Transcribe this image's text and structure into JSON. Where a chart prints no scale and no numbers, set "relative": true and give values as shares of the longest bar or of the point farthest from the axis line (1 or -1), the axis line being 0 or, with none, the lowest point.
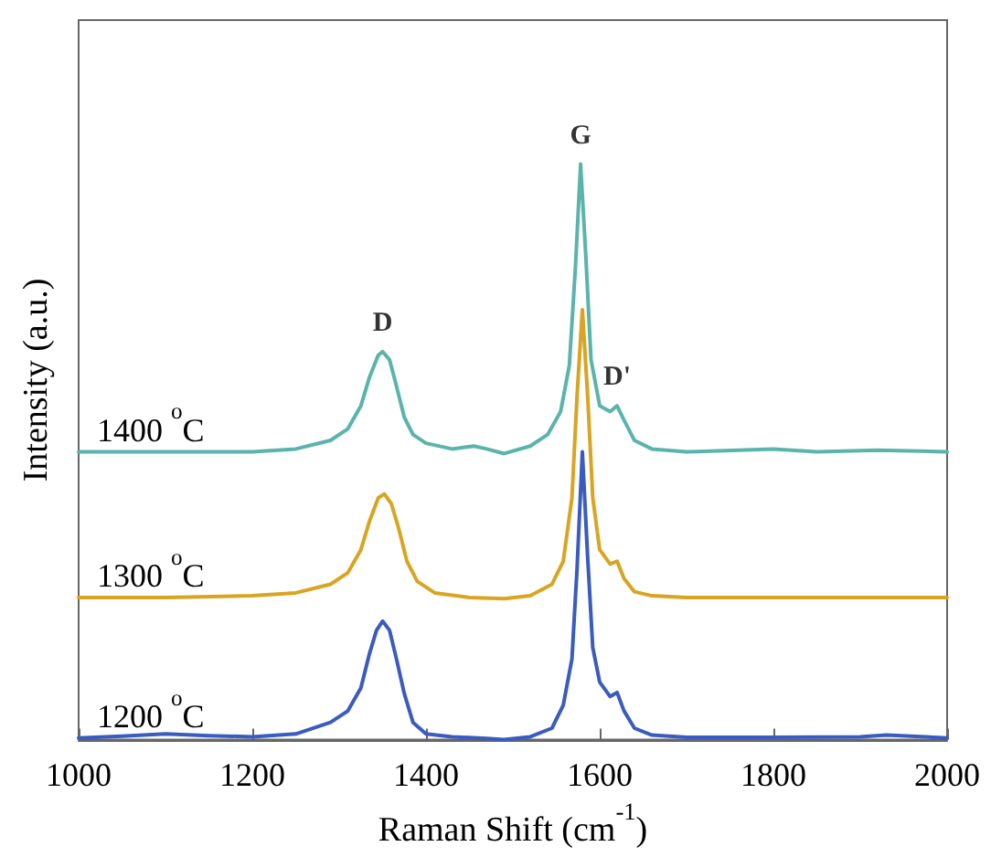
{
  "chart_data": {
    "type": "line",
    "xlabel": "Raman Shift (cm$^{-1}$)",
    "ylabel": "Intensity (a.u.)",
    "relative": true,
    "xlim": [
      1000,
      2000
    ],
    "xticks": [
      1000,
      1200,
      1400,
      1600,
      1800,
      2000
    ],
    "tick_labels": "x",
    "grid": false,
    "legend": false,
    "marker": "none",
    "line_style": "solid",
    "annotations": [
      {
        "text": "D",
        "x": 1350,
        "y": 0.674
      },
      {
        "text": "G",
        "x": 1578,
        "y": 1.0
      },
      {
        "text": "D'",
        "x": 1620,
        "y": 0.58
      }
    ],
    "series": [
      {
        "name": "1400 $^{o}$C",
        "color": "#5ab4ac",
        "x": [
          1000,
          1100,
          1200,
          1250,
          1290,
          1310,
          1325,
          1335,
          1345,
          1350,
          1358,
          1365,
          1375,
          1385,
          1400,
          1430,
          1455,
          1470,
          1490,
          1520,
          1540,
          1555,
          1565,
          1572,
          1578,
          1584,
          1590,
          1600,
          1612,
          1620,
          1628,
          1640,
          1660,
          1700,
          1800,
          1850,
          1920,
          2000
        ],
        "values": [
          0.5,
          0.5,
          0.5,
          0.505,
          0.52,
          0.54,
          0.58,
          0.63,
          0.668,
          0.674,
          0.66,
          0.62,
          0.56,
          0.53,
          0.515,
          0.505,
          0.51,
          0.505,
          0.497,
          0.51,
          0.53,
          0.57,
          0.65,
          0.82,
          1.0,
          0.84,
          0.66,
          0.58,
          0.57,
          0.58,
          0.555,
          0.52,
          0.505,
          0.5,
          0.505,
          0.5,
          0.503,
          0.5
        ]
      },
      {
        "name": "1300 $^{o}$C",
        "color": "#d9a521",
        "x": [
          1000,
          1100,
          1200,
          1250,
          1290,
          1310,
          1325,
          1335,
          1345,
          1352,
          1360,
          1368,
          1378,
          1390,
          1410,
          1450,
          1490,
          1520,
          1545,
          1558,
          1568,
          1574,
          1580,
          1586,
          1592,
          1600,
          1612,
          1620,
          1628,
          1640,
          1660,
          1700,
          1800,
          1900,
          2000
        ],
        "values": [
          0.247,
          0.247,
          0.25,
          0.255,
          0.27,
          0.29,
          0.33,
          0.38,
          0.42,
          0.427,
          0.41,
          0.37,
          0.31,
          0.275,
          0.255,
          0.247,
          0.245,
          0.25,
          0.27,
          0.31,
          0.42,
          0.6,
          0.747,
          0.6,
          0.42,
          0.33,
          0.305,
          0.31,
          0.28,
          0.257,
          0.25,
          0.247,
          0.247,
          0.247,
          0.247
        ]
      },
      {
        "name": "1200 $^{o}$C",
        "color": "#3a5bbf",
        "x": [
          1000,
          1050,
          1100,
          1150,
          1200,
          1250,
          1290,
          1310,
          1325,
          1335,
          1343,
          1350,
          1358,
          1366,
          1375,
          1385,
          1400,
          1430,
          1470,
          1490,
          1520,
          1545,
          1558,
          1568,
          1574,
          1580,
          1586,
          1592,
          1600,
          1612,
          1620,
          1628,
          1640,
          1660,
          1700,
          1800,
          1900,
          1930,
          2000
        ],
        "values": [
          0.003,
          0.006,
          0.01,
          0.007,
          0.005,
          0.01,
          0.03,
          0.05,
          0.09,
          0.15,
          0.19,
          0.206,
          0.19,
          0.14,
          0.08,
          0.03,
          0.01,
          0.005,
          0.002,
          0.0,
          0.005,
          0.02,
          0.06,
          0.14,
          0.3,
          0.5,
          0.32,
          0.16,
          0.1,
          0.075,
          0.082,
          0.05,
          0.02,
          0.008,
          0.004,
          0.004,
          0.005,
          0.008,
          0.003
        ]
      }
    ]
  }
}
